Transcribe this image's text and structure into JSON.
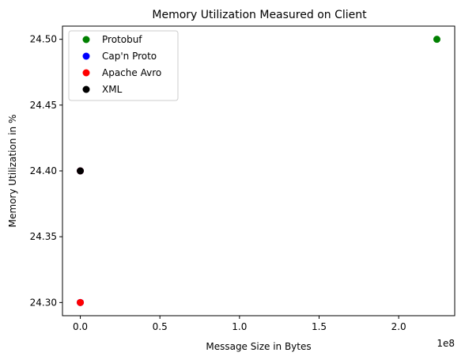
{
  "chart_data": {
    "type": "scatter",
    "title": "Memory Utilization Measured on Client",
    "xlabel": "Message Size in Bytes",
    "ylabel": "Memory Utilization in %",
    "x_offset_label": "1e8",
    "xlim": [
      -11200000,
      235200000
    ],
    "ylim": [
      24.29,
      24.51
    ],
    "x_ticks": [
      0,
      50000000,
      100000000,
      150000000,
      200000000
    ],
    "x_tick_labels": [
      "0.0",
      "0.5",
      "1.0",
      "1.5",
      "2.0"
    ],
    "y_ticks": [
      24.3,
      24.35,
      24.4,
      24.45,
      24.5
    ],
    "y_tick_labels": [
      "24.30",
      "24.35",
      "24.40",
      "24.45",
      "24.50"
    ],
    "grid": false,
    "legend_position": "upper-left",
    "series": [
      {
        "name": "Protobuf",
        "color": "#008000",
        "points": [
          [
            224000000,
            24.5
          ]
        ]
      },
      {
        "name": "Cap'n Proto",
        "color": "#0000ff",
        "points": [
          [
            0,
            24.3
          ],
          [
            0,
            24.4
          ]
        ]
      },
      {
        "name": "Apache Avro",
        "color": "#ff0000",
        "points": [
          [
            0,
            24.3
          ],
          [
            0,
            24.4
          ]
        ]
      },
      {
        "name": "XML",
        "color": "#000000",
        "points": [
          [
            0,
            24.4
          ]
        ]
      }
    ]
  }
}
